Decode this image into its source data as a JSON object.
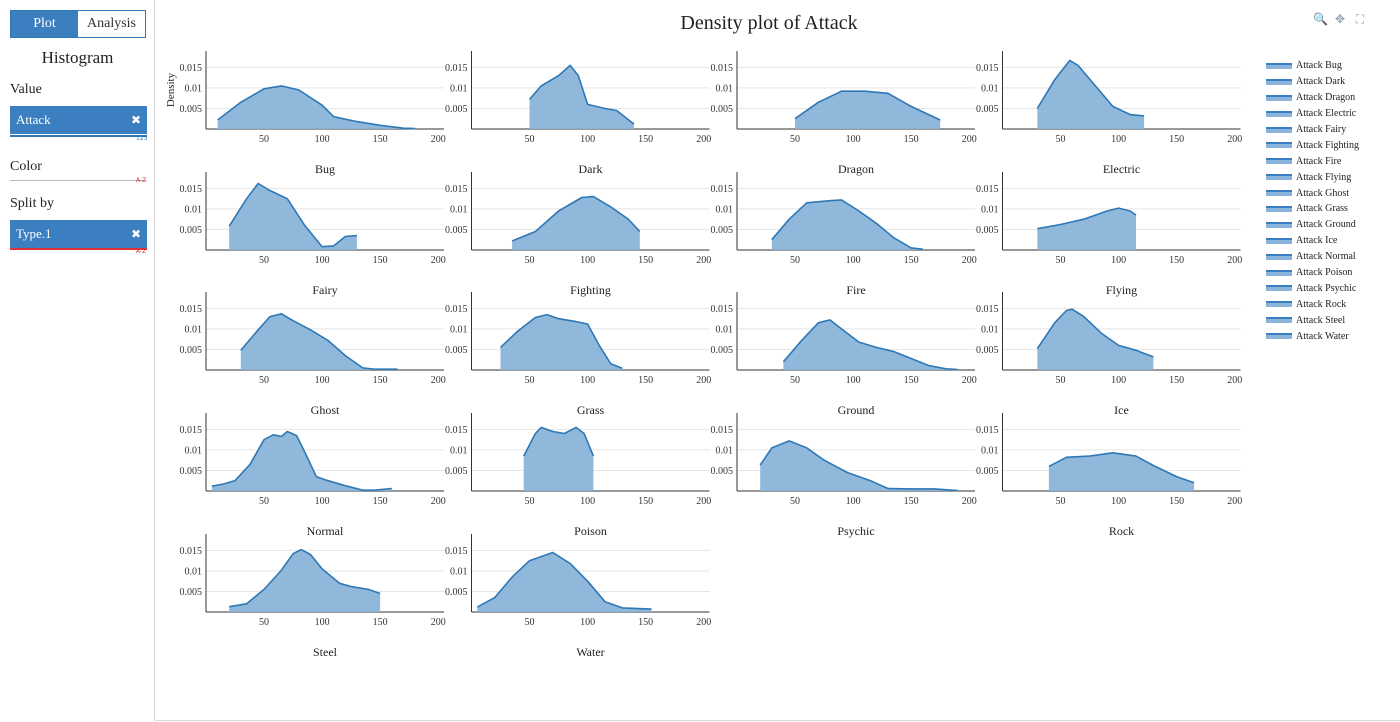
{
  "sidebar": {
    "tabs": [
      "Plot",
      "Analysis"
    ],
    "title": "Histogram",
    "value_label": "Value",
    "value_chip": "Attack",
    "value_tag": "123",
    "color_label": "Color",
    "color_tag": "A-Z",
    "split_label": "Split by",
    "split_chip": "Type.1",
    "split_tag": "A-Z",
    "remove_glyph": "✖"
  },
  "main": {
    "title": "Density plot of Attack"
  },
  "toolbar": {
    "icons": [
      "zoom-icon",
      "pan-icon",
      "autoscale-icon"
    ],
    "glyphs": [
      "🔍",
      "✥",
      "⛶"
    ]
  },
  "colors": {
    "accent": "#3b7fc0",
    "line": "#2e78b6",
    "fill": "#8ab4d9",
    "grid": "#e5e5e5",
    "tag_blue": "#2e78b6",
    "tag_red": "#e0303a"
  },
  "chart_data": {
    "type": "area",
    "ylabel": "Density",
    "xlim": [
      0,
      205
    ],
    "ylim": [
      0,
      0.019
    ],
    "xticks": [
      50,
      100,
      150,
      200
    ],
    "yticks": [
      0.005,
      0.01,
      0.015
    ],
    "ytick_labels": [
      "0.005",
      "0.01",
      "0.015"
    ],
    "legend_position": "right",
    "legend": [
      "Attack Bug",
      "Attack Dark",
      "Attack Dragon",
      "Attack Electric",
      "Attack Fairy",
      "Attack Fighting",
      "Attack Fire",
      "Attack Flying",
      "Attack Ghost",
      "Attack Grass",
      "Attack Ground",
      "Attack Ice",
      "Attack Normal",
      "Attack Poison",
      "Attack Psychic",
      "Attack Rock",
      "Attack Steel",
      "Attack Water"
    ],
    "panels": [
      {
        "name": "Bug",
        "points": [
          [
            10,
            0.0022
          ],
          [
            30,
            0.0065
          ],
          [
            50,
            0.0098
          ],
          [
            65,
            0.0105
          ],
          [
            80,
            0.0095
          ],
          [
            100,
            0.0058
          ],
          [
            110,
            0.003
          ],
          [
            130,
            0.0018
          ],
          [
            150,
            0.0009
          ],
          [
            170,
            0.0002
          ],
          [
            180,
            0.0001
          ]
        ]
      },
      {
        "name": "Dark",
        "points": [
          [
            50,
            0.0072
          ],
          [
            60,
            0.0105
          ],
          [
            75,
            0.013
          ],
          [
            85,
            0.0155
          ],
          [
            92,
            0.013
          ],
          [
            100,
            0.006
          ],
          [
            115,
            0.005
          ],
          [
            125,
            0.0045
          ],
          [
            140,
            0.0012
          ]
        ]
      },
      {
        "name": "Dragon",
        "points": [
          [
            50,
            0.0025
          ],
          [
            70,
            0.0065
          ],
          [
            90,
            0.0092
          ],
          [
            110,
            0.0092
          ],
          [
            130,
            0.0087
          ],
          [
            150,
            0.0055
          ],
          [
            175,
            0.0022
          ]
        ]
      },
      {
        "name": "Electric",
        "points": [
          [
            30,
            0.005
          ],
          [
            45,
            0.012
          ],
          [
            58,
            0.0167
          ],
          [
            65,
            0.0155
          ],
          [
            80,
            0.0105
          ],
          [
            95,
            0.0055
          ],
          [
            110,
            0.0035
          ],
          [
            122,
            0.0032
          ]
        ]
      },
      {
        "name": "Fairy",
        "points": [
          [
            20,
            0.0058
          ],
          [
            35,
            0.0125
          ],
          [
            45,
            0.0162
          ],
          [
            55,
            0.0145
          ],
          [
            70,
            0.0125
          ],
          [
            85,
            0.006
          ],
          [
            100,
            0.0008
          ],
          [
            110,
            0.001
          ],
          [
            120,
            0.0033
          ],
          [
            130,
            0.0035
          ]
        ]
      },
      {
        "name": "Fighting",
        "points": [
          [
            35,
            0.0022
          ],
          [
            55,
            0.0045
          ],
          [
            75,
            0.0095
          ],
          [
            95,
            0.0128
          ],
          [
            105,
            0.013
          ],
          [
            120,
            0.0105
          ],
          [
            135,
            0.0075
          ],
          [
            145,
            0.0045
          ]
        ]
      },
      {
        "name": "Fire",
        "points": [
          [
            30,
            0.0025
          ],
          [
            45,
            0.0075
          ],
          [
            60,
            0.0115
          ],
          [
            80,
            0.012
          ],
          [
            90,
            0.0122
          ],
          [
            105,
            0.0095
          ],
          [
            120,
            0.0065
          ],
          [
            135,
            0.003
          ],
          [
            150,
            0.0005
          ],
          [
            160,
            0.0002
          ]
        ]
      },
      {
        "name": "Flying",
        "points": [
          [
            30,
            0.0052
          ],
          [
            50,
            0.0062
          ],
          [
            70,
            0.0075
          ],
          [
            90,
            0.0095
          ],
          [
            100,
            0.0102
          ],
          [
            110,
            0.0095
          ],
          [
            115,
            0.0085
          ]
        ]
      },
      {
        "name": "Ghost",
        "points": [
          [
            30,
            0.0048
          ],
          [
            45,
            0.0098
          ],
          [
            55,
            0.013
          ],
          [
            65,
            0.0137
          ],
          [
            75,
            0.012
          ],
          [
            90,
            0.0098
          ],
          [
            105,
            0.0072
          ],
          [
            120,
            0.0035
          ],
          [
            135,
            0.0005
          ],
          [
            145,
            0.0002
          ],
          [
            165,
            0.0002
          ]
        ]
      },
      {
        "name": "Grass",
        "points": [
          [
            25,
            0.0055
          ],
          [
            40,
            0.0095
          ],
          [
            55,
            0.0128
          ],
          [
            65,
            0.0135
          ],
          [
            75,
            0.0125
          ],
          [
            90,
            0.0118
          ],
          [
            100,
            0.0112
          ],
          [
            110,
            0.006
          ],
          [
            120,
            0.0015
          ],
          [
            130,
            0.0004
          ]
        ]
      },
      {
        "name": "Ground",
        "points": [
          [
            40,
            0.002
          ],
          [
            55,
            0.007
          ],
          [
            70,
            0.0115
          ],
          [
            80,
            0.0122
          ],
          [
            90,
            0.01
          ],
          [
            105,
            0.0068
          ],
          [
            120,
            0.0055
          ],
          [
            135,
            0.0045
          ],
          [
            150,
            0.0028
          ],
          [
            165,
            0.0011
          ],
          [
            180,
            0.0003
          ],
          [
            190,
            0.0001
          ]
        ]
      },
      {
        "name": "Ice",
        "points": [
          [
            30,
            0.0052
          ],
          [
            45,
            0.0115
          ],
          [
            55,
            0.0145
          ],
          [
            60,
            0.0148
          ],
          [
            70,
            0.013
          ],
          [
            85,
            0.009
          ],
          [
            100,
            0.006
          ],
          [
            115,
            0.0048
          ],
          [
            130,
            0.0032
          ]
        ]
      },
      {
        "name": "Normal",
        "points": [
          [
            5,
            0.0012
          ],
          [
            15,
            0.0017
          ],
          [
            25,
            0.0025
          ],
          [
            38,
            0.0065
          ],
          [
            50,
            0.0125
          ],
          [
            58,
            0.0137
          ],
          [
            65,
            0.0133
          ],
          [
            70,
            0.0145
          ],
          [
            78,
            0.0135
          ],
          [
            85,
            0.0095
          ],
          [
            95,
            0.0035
          ],
          [
            105,
            0.0025
          ],
          [
            120,
            0.0013
          ],
          [
            135,
            0.0002
          ],
          [
            145,
            0.0002
          ],
          [
            160,
            0.0006
          ]
        ]
      },
      {
        "name": "Poison",
        "points": [
          [
            45,
            0.0085
          ],
          [
            55,
            0.014
          ],
          [
            60,
            0.0155
          ],
          [
            70,
            0.0145
          ],
          [
            80,
            0.014
          ],
          [
            90,
            0.0155
          ],
          [
            97,
            0.014
          ],
          [
            105,
            0.0085
          ]
        ]
      },
      {
        "name": "Psychic",
        "points": [
          [
            20,
            0.0063
          ],
          [
            30,
            0.0105
          ],
          [
            45,
            0.0122
          ],
          [
            60,
            0.0105
          ],
          [
            75,
            0.0075
          ],
          [
            95,
            0.0045
          ],
          [
            115,
            0.0025
          ],
          [
            130,
            0.0006
          ],
          [
            150,
            0.0005
          ],
          [
            170,
            0.0005
          ],
          [
            190,
            0.0001
          ]
        ]
      },
      {
        "name": "Rock",
        "points": [
          [
            40,
            0.006
          ],
          [
            55,
            0.0082
          ],
          [
            75,
            0.0085
          ],
          [
            95,
            0.0093
          ],
          [
            115,
            0.0085
          ],
          [
            130,
            0.0062
          ],
          [
            150,
            0.0035
          ],
          [
            165,
            0.002
          ]
        ]
      },
      {
        "name": "Steel",
        "points": [
          [
            20,
            0.0013
          ],
          [
            35,
            0.002
          ],
          [
            50,
            0.0055
          ],
          [
            65,
            0.0102
          ],
          [
            75,
            0.0142
          ],
          [
            82,
            0.0152
          ],
          [
            90,
            0.014
          ],
          [
            100,
            0.0105
          ],
          [
            115,
            0.007
          ],
          [
            125,
            0.0062
          ],
          [
            140,
            0.0055
          ],
          [
            150,
            0.0045
          ]
        ]
      },
      {
        "name": "Water",
        "points": [
          [
            5,
            0.0012
          ],
          [
            20,
            0.0035
          ],
          [
            35,
            0.0085
          ],
          [
            50,
            0.0125
          ],
          [
            70,
            0.0145
          ],
          [
            85,
            0.0118
          ],
          [
            100,
            0.0075
          ],
          [
            115,
            0.0025
          ],
          [
            130,
            0.001
          ],
          [
            155,
            0.0007
          ]
        ]
      }
    ]
  }
}
